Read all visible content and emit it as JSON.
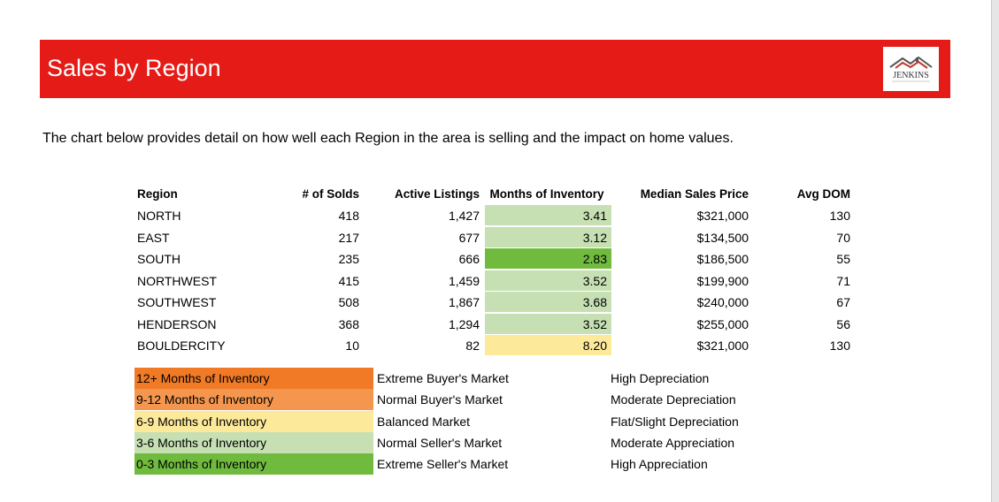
{
  "banner": {
    "title": "Sales by Region",
    "logo_text": "JENKINS"
  },
  "intro": "The chart below provides detail on how well each Region in the area is selling and the impact on home values.",
  "table": {
    "headers": [
      "Region",
      "# of Solds",
      "Active Listings",
      "Months of Inventory",
      "Median Sales Price",
      "Avg DOM"
    ],
    "rows": [
      {
        "region": "NORTH",
        "solds": "418",
        "active": "1,427",
        "moi": "3.41",
        "median": "$321,000",
        "dom": "130",
        "moi_color": "#c6e0b4"
      },
      {
        "region": "EAST",
        "solds": "217",
        "active": "677",
        "moi": "3.12",
        "median": "$134,500",
        "dom": "70",
        "moi_color": "#c6e0b4"
      },
      {
        "region": "SOUTH",
        "solds": "235",
        "active": "666",
        "moi": "2.83",
        "median": "$186,500",
        "dom": "55",
        "moi_color": "#70bb3e"
      },
      {
        "region": "NORTHWEST",
        "solds": "415",
        "active": "1,459",
        "moi": "3.52",
        "median": "$199,900",
        "dom": "71",
        "moi_color": "#c6e0b4"
      },
      {
        "region": "SOUTHWEST",
        "solds": "508",
        "active": "1,867",
        "moi": "3.68",
        "median": "$240,000",
        "dom": "67",
        "moi_color": "#c6e0b4"
      },
      {
        "region": "HENDERSON",
        "solds": "368",
        "active": "1,294",
        "moi": "3.52",
        "median": "$255,000",
        "dom": "56",
        "moi_color": "#c6e0b4"
      },
      {
        "region": "BOULDERCITY",
        "solds": "10",
        "active": "82",
        "moi": "8.20",
        "median": "$321,000",
        "dom": "130",
        "moi_color": "#fde99a"
      }
    ]
  },
  "legend": [
    {
      "range": "12+ Months of Inventory",
      "market": "Extreme Buyer's Market",
      "impact": "High Depreciation",
      "color": "#f07a25"
    },
    {
      "range": "9-12 Months of Inventory",
      "market": "Normal Buyer's Market",
      "impact": "Moderate Depreciation",
      "color": "#f4964e"
    },
    {
      "range": "6-9 Months of Inventory",
      "market": "Balanced Market",
      "impact": "Flat/Slight Depreciation",
      "color": "#fde99a"
    },
    {
      "range": "3-6 Months of Inventory",
      "market": "Normal Seller's Market",
      "impact": "Moderate Appreciation",
      "color": "#c6e0b4"
    },
    {
      "range": "0-3 Months of Inventory",
      "market": "Extreme Seller's Market",
      "impact": "High Appreciation",
      "color": "#70bb3e"
    }
  ],
  "colors": {
    "banner": "#e41b17"
  }
}
